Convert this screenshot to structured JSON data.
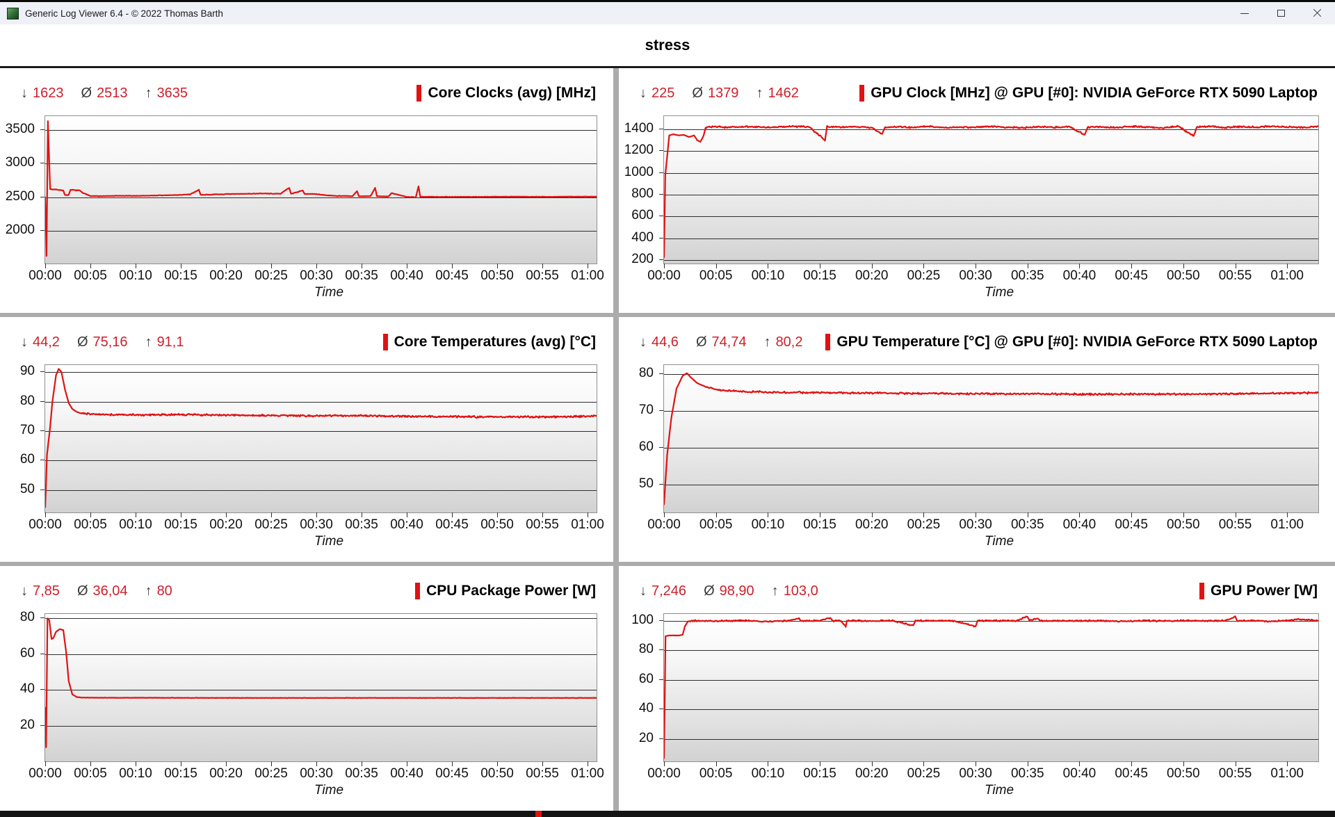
{
  "window": {
    "title": "Generic Log Viewer 6.4 - © 2022 Thomas Barth"
  },
  "header": {
    "title": "stress"
  },
  "stats_symbols": {
    "min": "↓",
    "avg": "Ø",
    "max": "↑"
  },
  "theme": {
    "line_color": "#e01212",
    "marker_color": "#e01212",
    "stat_value_color": "#cf1f2b"
  },
  "x_axis": {
    "label": "Time",
    "ticks": [
      "00:00",
      "00:05",
      "00:10",
      "00:15",
      "00:20",
      "00:25",
      "00:30",
      "00:35",
      "00:40",
      "00:45",
      "00:50",
      "00:55",
      "01:00"
    ]
  },
  "chart_data": [
    {
      "id": "core-clocks",
      "type": "line",
      "column": "left",
      "title": "Core Clocks (avg) [MHz]",
      "stats": {
        "min": "1623",
        "avg": "2513",
        "max": "3635"
      },
      "y_ticks": [
        2000,
        2500,
        3000,
        3500
      ],
      "y_range": [
        1510,
        3710
      ],
      "x_total_minutes": 61,
      "noise": {
        "amp": 5,
        "after": 0.6
      },
      "series_keypoints": [
        [
          0,
          2500
        ],
        [
          0.15,
          1623
        ],
        [
          0.3,
          3635
        ],
        [
          0.55,
          2620
        ],
        [
          1.5,
          2610
        ],
        [
          2.0,
          2600
        ],
        [
          2.2,
          2530
        ],
        [
          2.6,
          2530
        ],
        [
          2.8,
          2610
        ],
        [
          3.8,
          2600
        ],
        [
          4.2,
          2560
        ],
        [
          5,
          2520
        ],
        [
          6,
          2515
        ],
        [
          8,
          2520
        ],
        [
          10,
          2520
        ],
        [
          12,
          2525
        ],
        [
          14,
          2530
        ],
        [
          16,
          2540
        ],
        [
          17,
          2610
        ],
        [
          17.2,
          2535
        ],
        [
          20,
          2545
        ],
        [
          22,
          2550
        ],
        [
          24,
          2555
        ],
        [
          26,
          2550
        ],
        [
          27,
          2640
        ],
        [
          27.2,
          2550
        ],
        [
          28.5,
          2600
        ],
        [
          28.7,
          2550
        ],
        [
          30,
          2545
        ],
        [
          31,
          2530
        ],
        [
          32,
          2520
        ],
        [
          34,
          2515
        ],
        [
          34.5,
          2590
        ],
        [
          34.7,
          2515
        ],
        [
          36,
          2515
        ],
        [
          36.5,
          2640
        ],
        [
          36.7,
          2515
        ],
        [
          38,
          2510
        ],
        [
          38.3,
          2560
        ],
        [
          40,
          2505
        ],
        [
          41,
          2500
        ],
        [
          41.3,
          2660
        ],
        [
          41.5,
          2505
        ],
        [
          44,
          2505
        ],
        [
          48,
          2505
        ],
        [
          52,
          2508
        ],
        [
          56,
          2505
        ],
        [
          58,
          2508
        ],
        [
          61,
          2507
        ]
      ]
    },
    {
      "id": "gpu-clock",
      "type": "line",
      "column": "right",
      "title": "GPU Clock [MHz] @ GPU [#0]: NVIDIA GeForce RTX 5090 Laptop",
      "stats": {
        "min": "225",
        "avg": "1379",
        "max": "1462"
      },
      "y_ticks": [
        200,
        400,
        600,
        800,
        1000,
        1200,
        1400
      ],
      "y_range": [
        168,
        1522
      ],
      "x_total_minutes": 63,
      "noise": {
        "amp": 9,
        "after": 4
      },
      "series_keypoints": [
        [
          0,
          225
        ],
        [
          0.12,
          980
        ],
        [
          0.3,
          1150
        ],
        [
          0.5,
          1345
        ],
        [
          0.9,
          1355
        ],
        [
          1.4,
          1345
        ],
        [
          1.9,
          1350
        ],
        [
          2.4,
          1330
        ],
        [
          2.9,
          1345
        ],
        [
          3.2,
          1300
        ],
        [
          3.5,
          1285
        ],
        [
          3.8,
          1340
        ],
        [
          4.0,
          1415
        ],
        [
          4.5,
          1425
        ],
        [
          6,
          1420
        ],
        [
          8,
          1425
        ],
        [
          10,
          1418
        ],
        [
          12,
          1428
        ],
        [
          14,
          1422
        ],
        [
          15.5,
          1300
        ],
        [
          15.7,
          1425
        ],
        [
          17,
          1420
        ],
        [
          18.5,
          1428
        ],
        [
          20,
          1415
        ],
        [
          21,
          1360
        ],
        [
          21.3,
          1420
        ],
        [
          22.5,
          1425
        ],
        [
          24,
          1418
        ],
        [
          25.5,
          1428
        ],
        [
          27,
          1415
        ],
        [
          28.5,
          1422
        ],
        [
          30,
          1418
        ],
        [
          31.5,
          1428
        ],
        [
          33,
          1420
        ],
        [
          34.5,
          1415
        ],
        [
          36,
          1425
        ],
        [
          37.5,
          1418
        ],
        [
          39,
          1428
        ],
        [
          40.5,
          1350
        ],
        [
          40.8,
          1420
        ],
        [
          42,
          1425
        ],
        [
          43.5,
          1418
        ],
        [
          45,
          1428
        ],
        [
          46.5,
          1420
        ],
        [
          48,
          1415
        ],
        [
          49.5,
          1428
        ],
        [
          51,
          1340
        ],
        [
          51.3,
          1422
        ],
        [
          52.5,
          1428
        ],
        [
          54,
          1418
        ],
        [
          55.5,
          1425
        ],
        [
          57,
          1420
        ],
        [
          58.5,
          1428
        ],
        [
          60,
          1422
        ],
        [
          61.5,
          1418
        ],
        [
          63,
          1430
        ]
      ]
    },
    {
      "id": "core-temperatures",
      "type": "line",
      "column": "left",
      "title": "Core Temperatures (avg) [°C]",
      "stats": {
        "min": "44,2",
        "avg": "75,16",
        "max": "91,1"
      },
      "y_ticks": [
        50,
        60,
        70,
        80,
        90
      ],
      "y_range": [
        42.4,
        92.4
      ],
      "x_total_minutes": 61,
      "noise": {
        "amp": 0.35,
        "after": 4
      },
      "series_keypoints": [
        [
          0,
          44.2
        ],
        [
          0.2,
          62
        ],
        [
          0.5,
          70
        ],
        [
          0.8,
          80
        ],
        [
          1.2,
          89
        ],
        [
          1.5,
          91.1
        ],
        [
          1.8,
          90
        ],
        [
          2.2,
          84
        ],
        [
          2.6,
          79.5
        ],
        [
          3.0,
          77.5
        ],
        [
          3.5,
          76.5
        ],
        [
          4,
          76
        ],
        [
          5,
          75.8
        ],
        [
          7,
          75.6
        ],
        [
          10,
          75.5
        ],
        [
          15,
          75.6
        ],
        [
          20,
          75.4
        ],
        [
          25,
          75.3
        ],
        [
          30,
          75.2
        ],
        [
          35,
          75.2
        ],
        [
          40,
          75.0
        ],
        [
          45,
          74.9
        ],
        [
          50,
          74.8
        ],
        [
          55,
          74.8
        ],
        [
          58,
          74.9
        ],
        [
          60,
          75.0
        ],
        [
          61,
          75.2
        ]
      ]
    },
    {
      "id": "gpu-temperature",
      "type": "line",
      "column": "right",
      "title": "GPU Temperature [°C] @ GPU [#0]: NVIDIA GeForce RTX 5090 Laptop",
      "stats": {
        "min": "44,6",
        "avg": "74,74",
        "max": "80,2"
      },
      "y_ticks": [
        50,
        60,
        70,
        80
      ],
      "y_range": [
        42.4,
        82.4
      ],
      "x_total_minutes": 63,
      "noise": {
        "amp": 0.3,
        "after": 4
      },
      "series_keypoints": [
        [
          0,
          44.6
        ],
        [
          0.3,
          58
        ],
        [
          0.7,
          68
        ],
        [
          1.2,
          76
        ],
        [
          1.8,
          79.5
        ],
        [
          2.2,
          80.2
        ],
        [
          2.6,
          79
        ],
        [
          3.2,
          77.5
        ],
        [
          4,
          76.5
        ],
        [
          5,
          75.8
        ],
        [
          6,
          75.4
        ],
        [
          8,
          75.2
        ],
        [
          10,
          75.0
        ],
        [
          15,
          74.9
        ],
        [
          20,
          74.8
        ],
        [
          25,
          74.7
        ],
        [
          30,
          74.6
        ],
        [
          35,
          74.6
        ],
        [
          40,
          74.5
        ],
        [
          45,
          74.5
        ],
        [
          50,
          74.5
        ],
        [
          55,
          74.6
        ],
        [
          58,
          74.7
        ],
        [
          61,
          74.8
        ],
        [
          63,
          74.9
        ]
      ]
    },
    {
      "id": "cpu-package-power",
      "type": "line",
      "column": "left",
      "title": "CPU Package Power [W]",
      "stats": {
        "min": "7,85",
        "avg": "36,04",
        "max": "80"
      },
      "y_ticks": [
        20,
        40,
        60,
        80
      ],
      "y_range": [
        0,
        82.5
      ],
      "x_total_minutes": 61,
      "noise": {
        "amp": 0.12,
        "after": 4
      },
      "series_keypoints": [
        [
          0,
          30
        ],
        [
          0.1,
          7.85
        ],
        [
          0.25,
          80
        ],
        [
          0.45,
          79
        ],
        [
          0.7,
          68.5
        ],
        [
          0.9,
          69
        ],
        [
          1.2,
          72.5
        ],
        [
          1.6,
          74
        ],
        [
          2.0,
          73.5
        ],
        [
          2.3,
          62
        ],
        [
          2.6,
          45
        ],
        [
          3.0,
          37.5
        ],
        [
          3.5,
          36
        ],
        [
          4,
          35.7
        ],
        [
          6,
          35.6
        ],
        [
          10,
          35.6
        ],
        [
          20,
          35.5
        ],
        [
          30,
          35.5
        ],
        [
          40,
          35.5
        ],
        [
          50,
          35.5
        ],
        [
          60,
          35.5
        ],
        [
          61,
          35.5
        ]
      ]
    },
    {
      "id": "gpu-power",
      "type": "line",
      "column": "right",
      "title": "GPU Power [W]",
      "stats": {
        "min": "7,246",
        "avg": "98,90",
        "max": "103,0"
      },
      "y_ticks": [
        20,
        40,
        60,
        80,
        100
      ],
      "y_range": [
        5,
        104.5
      ],
      "x_total_minutes": 63,
      "noise": {
        "amp": 0.6,
        "after": 2.5
      },
      "series_keypoints": [
        [
          0,
          7.2
        ],
        [
          0.15,
          89.5
        ],
        [
          0.5,
          90
        ],
        [
          1.0,
          90
        ],
        [
          1.5,
          90
        ],
        [
          1.8,
          90.5
        ],
        [
          2.0,
          96
        ],
        [
          2.3,
          99.5
        ],
        [
          3,
          100
        ],
        [
          5,
          99.8
        ],
        [
          8,
          100
        ],
        [
          10,
          99.5
        ],
        [
          12,
          100
        ],
        [
          13,
          101.5
        ],
        [
          13.2,
          99.8
        ],
        [
          15,
          100
        ],
        [
          16,
          102
        ],
        [
          16.2,
          99.8
        ],
        [
          17,
          100
        ],
        [
          17.5,
          96
        ],
        [
          17.6,
          100
        ],
        [
          20,
          99.8
        ],
        [
          22,
          100
        ],
        [
          24,
          96.5
        ],
        [
          24.2,
          100
        ],
        [
          26,
          100
        ],
        [
          28,
          99.8
        ],
        [
          30,
          96
        ],
        [
          30.2,
          100
        ],
        [
          32,
          100
        ],
        [
          34,
          100
        ],
        [
          35,
          103
        ],
        [
          35.2,
          100
        ],
        [
          36,
          101.5
        ],
        [
          36.3,
          99.8
        ],
        [
          38,
          100
        ],
        [
          40,
          99.8
        ],
        [
          42,
          100
        ],
        [
          44,
          99.5
        ],
        [
          46,
          100
        ],
        [
          48,
          99.8
        ],
        [
          50,
          100
        ],
        [
          52,
          99.8
        ],
        [
          54,
          100
        ],
        [
          55,
          102.5
        ],
        [
          55.2,
          99.8
        ],
        [
          57,
          100
        ],
        [
          58,
          99.5
        ],
        [
          60,
          100
        ],
        [
          61,
          101
        ],
        [
          63,
          100
        ]
      ]
    }
  ]
}
